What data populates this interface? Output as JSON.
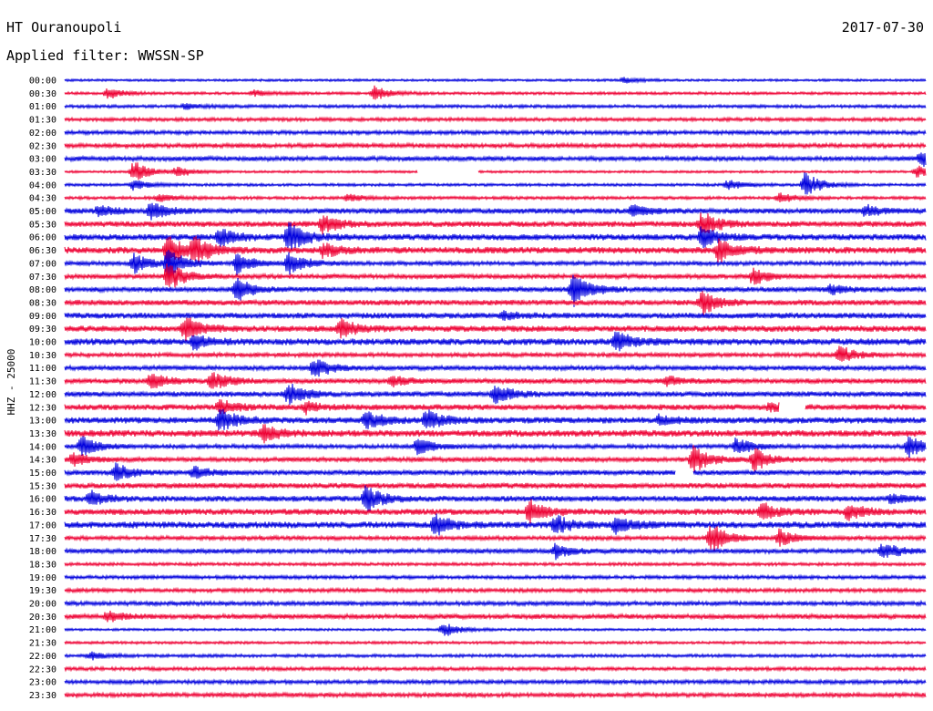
{
  "header": {
    "station": "HT Ouranoupoli",
    "date": "2017-07-30",
    "filter_label": "Applied filter:",
    "filter_name": "WWSSN-SP"
  },
  "chart_data": {
    "type": "line",
    "ylabel": "HHZ - 25000",
    "colors": {
      "even": "#0000dd",
      "odd": "#ee0033"
    },
    "rows": [
      {
        "label": "00:00",
        "events": [
          [
            0.65,
            3
          ]
        ]
      },
      {
        "label": "00:30",
        "events": [
          [
            0.05,
            6
          ],
          [
            0.22,
            3
          ],
          [
            0.36,
            8
          ]
        ]
      },
      {
        "label": "01:00",
        "events": [
          [
            0.14,
            3
          ]
        ]
      },
      {
        "label": "01:30",
        "events": []
      },
      {
        "label": "02:00",
        "events": []
      },
      {
        "label": "02:30",
        "events": []
      },
      {
        "label": "03:00",
        "events": [
          [
            0.995,
            8
          ]
        ]
      },
      {
        "label": "03:30",
        "events": [
          [
            0.08,
            12
          ],
          [
            0.13,
            6
          ],
          [
            0.99,
            7
          ]
        ],
        "gaps": [
          [
            0.41,
            0.48
          ]
        ]
      },
      {
        "label": "04:00",
        "events": [
          [
            0.08,
            6
          ],
          [
            0.77,
            6
          ],
          [
            0.86,
            14
          ]
        ]
      },
      {
        "label": "04:30",
        "events": [
          [
            0.11,
            4
          ],
          [
            0.33,
            4
          ],
          [
            0.83,
            6
          ]
        ]
      },
      {
        "label": "05:00",
        "events": [
          [
            0.04,
            6
          ],
          [
            0.1,
            10
          ],
          [
            0.66,
            7
          ],
          [
            0.93,
            6
          ]
        ]
      },
      {
        "label": "05:30",
        "events": [
          [
            0.3,
            10
          ],
          [
            0.74,
            14
          ]
        ]
      },
      {
        "label": "06:00",
        "events": [
          [
            0.18,
            10
          ],
          [
            0.26,
            18
          ],
          [
            0.74,
            12
          ]
        ]
      },
      {
        "label": "06:30",
        "events": [
          [
            0.12,
            16
          ],
          [
            0.15,
            14
          ],
          [
            0.3,
            8
          ],
          [
            0.76,
            14
          ]
        ]
      },
      {
        "label": "07:00",
        "events": [
          [
            0.08,
            12
          ],
          [
            0.12,
            18
          ],
          [
            0.2,
            12
          ],
          [
            0.26,
            14
          ]
        ]
      },
      {
        "label": "07:30",
        "events": [
          [
            0.12,
            18
          ],
          [
            0.8,
            10
          ]
        ]
      },
      {
        "label": "08:00",
        "events": [
          [
            0.2,
            12
          ],
          [
            0.59,
            20
          ],
          [
            0.89,
            5
          ]
        ]
      },
      {
        "label": "08:30",
        "events": [
          [
            0.74,
            14
          ]
        ]
      },
      {
        "label": "09:00",
        "events": [
          [
            0.51,
            4
          ]
        ]
      },
      {
        "label": "09:30",
        "events": [
          [
            0.14,
            14
          ],
          [
            0.32,
            10
          ]
        ]
      },
      {
        "label": "10:00",
        "events": [
          [
            0.15,
            8
          ],
          [
            0.64,
            12
          ]
        ]
      },
      {
        "label": "10:30",
        "events": [
          [
            0.9,
            10
          ]
        ]
      },
      {
        "label": "11:00",
        "events": [
          [
            0.29,
            12
          ]
        ]
      },
      {
        "label": "11:30",
        "events": [
          [
            0.1,
            10
          ],
          [
            0.17,
            12
          ],
          [
            0.38,
            6
          ],
          [
            0.7,
            5
          ]
        ]
      },
      {
        "label": "12:00",
        "events": [
          [
            0.26,
            12
          ],
          [
            0.5,
            12
          ]
        ]
      },
      {
        "label": "12:30",
        "events": [
          [
            0.18,
            8
          ],
          [
            0.28,
            6
          ],
          [
            0.82,
            5
          ]
        ],
        "gaps": [
          [
            0.83,
            0.86
          ]
        ]
      },
      {
        "label": "13:00",
        "events": [
          [
            0.18,
            14
          ],
          [
            0.35,
            10
          ],
          [
            0.42,
            12
          ],
          [
            0.69,
            5
          ]
        ]
      },
      {
        "label": "13:30",
        "events": [
          [
            0.23,
            10
          ]
        ]
      },
      {
        "label": "14:00",
        "events": [
          [
            0.02,
            12
          ],
          [
            0.41,
            10
          ],
          [
            0.78,
            10
          ],
          [
            0.98,
            12
          ]
        ]
      },
      {
        "label": "14:30",
        "events": [
          [
            0.01,
            8
          ],
          [
            0.73,
            18
          ],
          [
            0.8,
            14
          ]
        ]
      },
      {
        "label": "15:00",
        "events": [
          [
            0.06,
            10
          ],
          [
            0.15,
            6
          ]
        ],
        "gaps": [
          [
            0.71,
            0.73
          ]
        ]
      },
      {
        "label": "15:30",
        "events": []
      },
      {
        "label": "16:00",
        "events": [
          [
            0.03,
            8
          ],
          [
            0.35,
            14
          ],
          [
            0.96,
            5
          ]
        ]
      },
      {
        "label": "16:30",
        "events": [
          [
            0.54,
            12
          ],
          [
            0.81,
            10
          ],
          [
            0.91,
            10
          ]
        ]
      },
      {
        "label": "17:00",
        "events": [
          [
            0.43,
            12
          ],
          [
            0.57,
            10
          ],
          [
            0.64,
            10
          ]
        ]
      },
      {
        "label": "17:30",
        "events": [
          [
            0.75,
            18
          ],
          [
            0.83,
            10
          ]
        ]
      },
      {
        "label": "18:00",
        "events": [
          [
            0.57,
            8
          ],
          [
            0.95,
            10
          ]
        ]
      },
      {
        "label": "18:30",
        "events": []
      },
      {
        "label": "19:00",
        "events": []
      },
      {
        "label": "19:30",
        "events": []
      },
      {
        "label": "20:00",
        "events": []
      },
      {
        "label": "20:30",
        "events": [
          [
            0.05,
            6
          ]
        ]
      },
      {
        "label": "21:00",
        "events": [
          [
            0.44,
            8
          ]
        ]
      },
      {
        "label": "21:30",
        "events": []
      },
      {
        "label": "22:00",
        "events": [
          [
            0.03,
            4
          ]
        ]
      },
      {
        "label": "22:30",
        "events": []
      },
      {
        "label": "23:00",
        "events": []
      },
      {
        "label": "23:30",
        "events": []
      }
    ]
  }
}
